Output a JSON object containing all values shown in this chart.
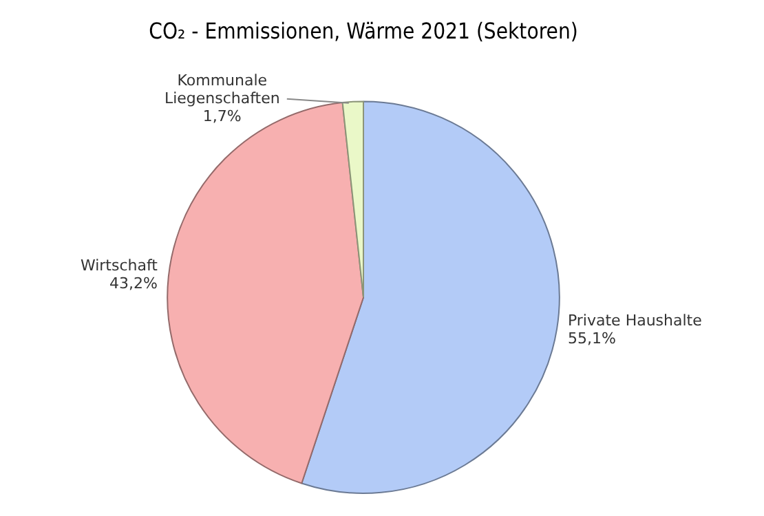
{
  "chart_data": {
    "type": "pie",
    "title": "CO₂ - Emmissionen, Wärme 2021 (Sektoren)",
    "categories": [
      "Private Haushalte",
      "Wirtschaft",
      "Kommunale Liegenschaften"
    ],
    "values": [
      55.1,
      43.2,
      1.7
    ],
    "colors": [
      "#b3cbf7",
      "#f7b0b0",
      "#eaf8c8"
    ],
    "value_labels": [
      "55,1%",
      "43,2%",
      "1,7%"
    ],
    "legend": false
  }
}
